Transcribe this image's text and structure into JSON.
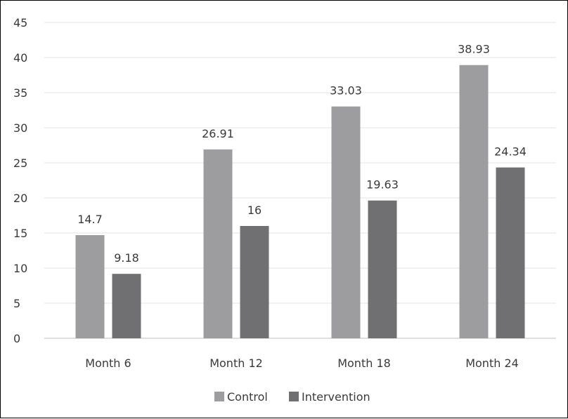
{
  "chart_data": {
    "type": "bar",
    "categories": [
      "Month 6",
      "Month 12",
      "Month 18",
      "Month 24"
    ],
    "series": [
      {
        "name": "Control",
        "values": [
          14.7,
          26.91,
          33.03,
          38.93
        ],
        "color": "#9d9d9f"
      },
      {
        "name": "Intervention",
        "values": [
          9.18,
          16,
          19.63,
          24.34
        ],
        "color": "#707073"
      }
    ],
    "data_labels": [
      [
        "14.7",
        "26.91",
        "33.03",
        "38.93"
      ],
      [
        "9.18",
        "16",
        "19.63",
        "24.34"
      ]
    ],
    "title": "",
    "xlabel": "",
    "ylabel": "",
    "ylim": [
      0,
      45
    ],
    "y_ticks": [
      "0",
      "5",
      "10",
      "15",
      "20",
      "25",
      "30",
      "35",
      "40",
      "45"
    ],
    "grid": true,
    "legend_position": "bottom-center"
  }
}
